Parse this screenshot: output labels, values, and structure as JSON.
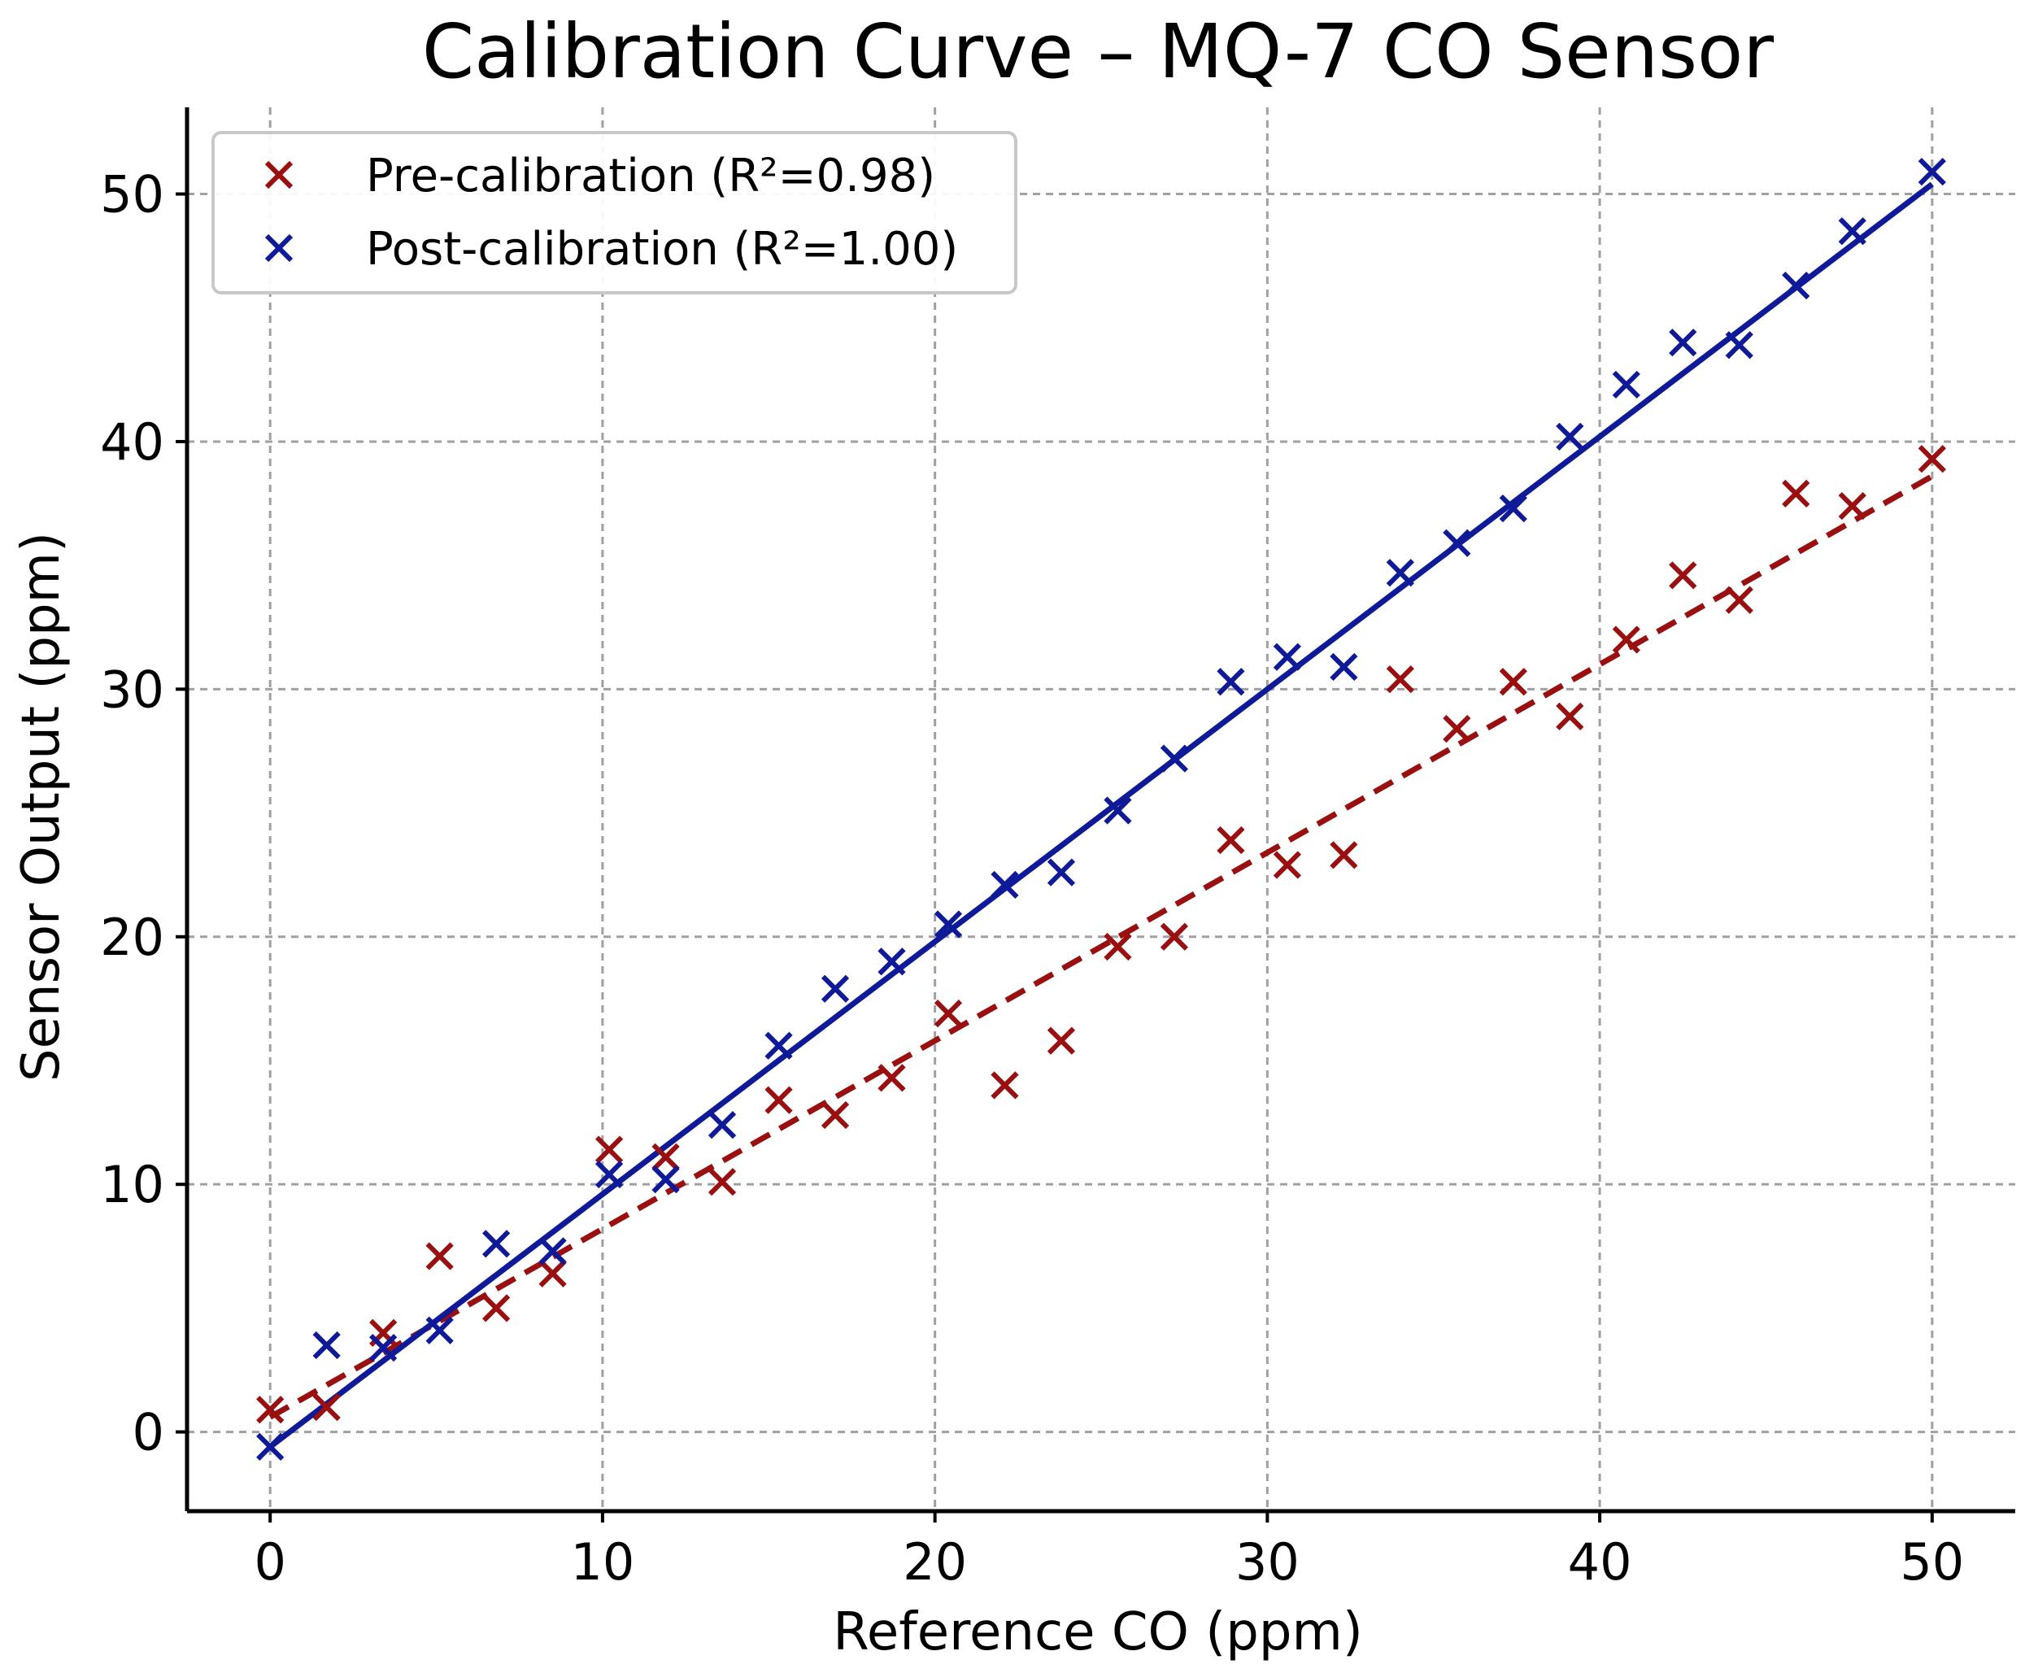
{
  "chart_data": {
    "type": "scatter",
    "title": "Calibration Curve – MQ-7 CO Sensor",
    "xlabel": "Reference CO (ppm)",
    "ylabel": "Sensor Output (ppm)",
    "xlim": [
      -2.5,
      52.5
    ],
    "ylim": [
      -3.2,
      53.5
    ],
    "xticks": [
      0,
      10,
      20,
      30,
      40,
      50
    ],
    "yticks": [
      0,
      10,
      20,
      30,
      40,
      50
    ],
    "xtick_labels": [
      "0",
      "10",
      "20",
      "30",
      "40",
      "50"
    ],
    "ytick_labels": [
      "0",
      "10",
      "20",
      "30",
      "40",
      "50"
    ],
    "grid": true,
    "legend_position": "top-left",
    "x": [
      0.0,
      1.7,
      3.4,
      5.1,
      6.8,
      8.5,
      10.2,
      11.9,
      13.6,
      15.3,
      17.0,
      18.7,
      20.4,
      22.1,
      23.8,
      25.5,
      27.2,
      28.9,
      30.6,
      32.3,
      34.0,
      35.7,
      37.4,
      39.1,
      40.8,
      42.5,
      44.2,
      45.9,
      47.6,
      50.0
    ],
    "series": [
      {
        "name": "Pre-calibration (R²=0.98)",
        "color": "#9a0f0f",
        "marker": "x-marker",
        "fit_line_style": "dashed",
        "fit": {
          "slope": 0.76,
          "intercept": 0.6
        },
        "values": [
          0.9,
          1.0,
          4.0,
          7.1,
          5.0,
          6.4,
          11.4,
          11.1,
          10.1,
          13.4,
          12.8,
          14.3,
          16.9,
          14.0,
          15.8,
          19.6,
          20.0,
          23.9,
          22.9,
          23.3,
          30.4,
          28.4,
          30.3,
          28.9,
          32.0,
          34.6,
          33.6,
          37.9,
          37.4,
          39.3
        ]
      },
      {
        "name": "Post-calibration (R²=1.00)",
        "color": "#0f1a99",
        "marker": "x-marker",
        "fit_line_style": "solid",
        "fit": {
          "slope": 1.02,
          "intercept": -0.6
        },
        "values": [
          -0.6,
          3.5,
          3.4,
          4.1,
          7.6,
          7.3,
          10.4,
          10.2,
          12.4,
          15.6,
          17.9,
          19.0,
          20.5,
          22.1,
          22.6,
          25.1,
          27.2,
          30.3,
          31.3,
          30.9,
          34.7,
          35.9,
          37.3,
          40.2,
          42.3,
          44.0,
          43.9,
          46.3,
          48.5,
          50.9
        ]
      }
    ]
  }
}
